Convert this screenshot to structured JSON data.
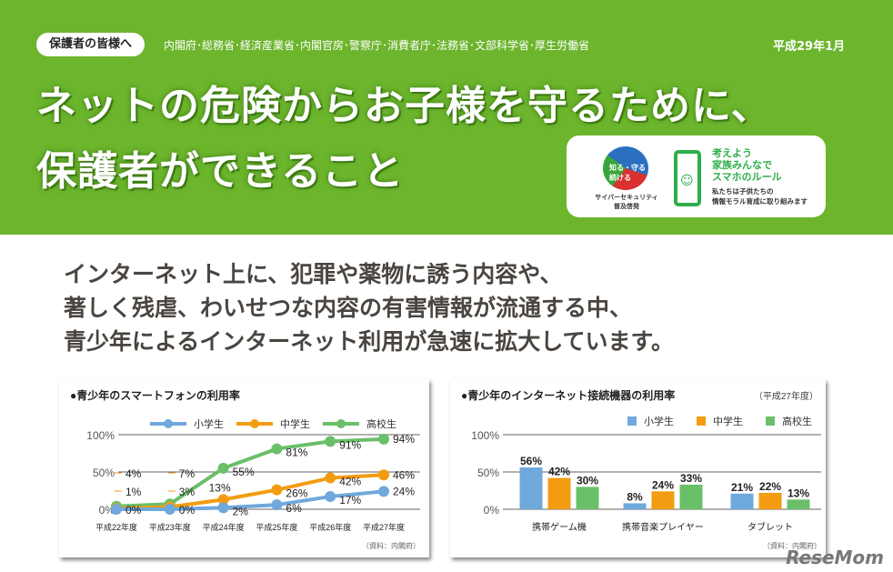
{
  "header": {
    "audience": "保護者の皆様へ",
    "ministries": "内閣府･総務省･経済産業省･内閣官房･警察庁･消費者庁･法務省･文部科学省･厚生労働省",
    "date": "平成29年1月",
    "title_line1": "ネットの危険からお子様を守るために、",
    "title_line2": "保護者ができること",
    "bg_color": "#6cb52d"
  },
  "logos": {
    "cyber_logo_text": "知る・守る 続ける",
    "cyber_caption_1": "サイバーセキュリティ",
    "cyber_caption_2": "普及啓発",
    "rule_line1": "考えよう",
    "rule_line2": "家族みんなで",
    "rule_line3": "スマホのルール",
    "rule_sub1": "私たちは子供たちの",
    "rule_sub2": "情報モラル育成に取り組みます"
  },
  "body": {
    "line1": "インターネット上に、犯罪や薬物に誘う内容や、",
    "line2": "著しく残虐、わいせつな内容の有害情報が流通する中、",
    "line3": "青少年によるインターネット利用が急速に拡大しています。"
  },
  "chart_data": [
    {
      "type": "line",
      "title": "●青少年のスマートフォンの利用率",
      "source": "（資料：内閣府）",
      "categories": [
        "平成22年度",
        "平成23年度",
        "平成24年度",
        "平成25年度",
        "平成26年度",
        "平成27年度"
      ],
      "yticks": [
        "0%",
        "50%",
        "100%"
      ],
      "ylim": [
        0,
        100
      ],
      "legend": "top",
      "series": [
        {
          "name": "小学生",
          "color": "#6fa8dc",
          "values": [
            0,
            0,
            2,
            6,
            17,
            24
          ]
        },
        {
          "name": "中学生",
          "color": "#f39c12",
          "values": [
            1,
            3,
            13,
            26,
            42,
            46
          ]
        },
        {
          "name": "高校生",
          "color": "#6abf69",
          "values": [
            4,
            7,
            55,
            81,
            91,
            94
          ]
        }
      ]
    },
    {
      "type": "bar",
      "title": "●青少年のインターネット接続機器の利用率",
      "subtitle": "（平成27年度）",
      "source": "（資料：内閣府）",
      "categories": [
        "携帯ゲーム機",
        "携帯音楽プレイヤー",
        "タブレット"
      ],
      "yticks": [
        "0%",
        "50%",
        "100%"
      ],
      "ylim": [
        0,
        100
      ],
      "legend": "top-right",
      "series": [
        {
          "name": "小学生",
          "color": "#6fa8dc",
          "values": [
            56,
            8,
            21
          ]
        },
        {
          "name": "中学生",
          "color": "#f39c12",
          "values": [
            42,
            24,
            22
          ]
        },
        {
          "name": "高校生",
          "color": "#6abf69",
          "values": [
            30,
            33,
            13
          ]
        }
      ]
    }
  ],
  "watermark": "ReseMom"
}
